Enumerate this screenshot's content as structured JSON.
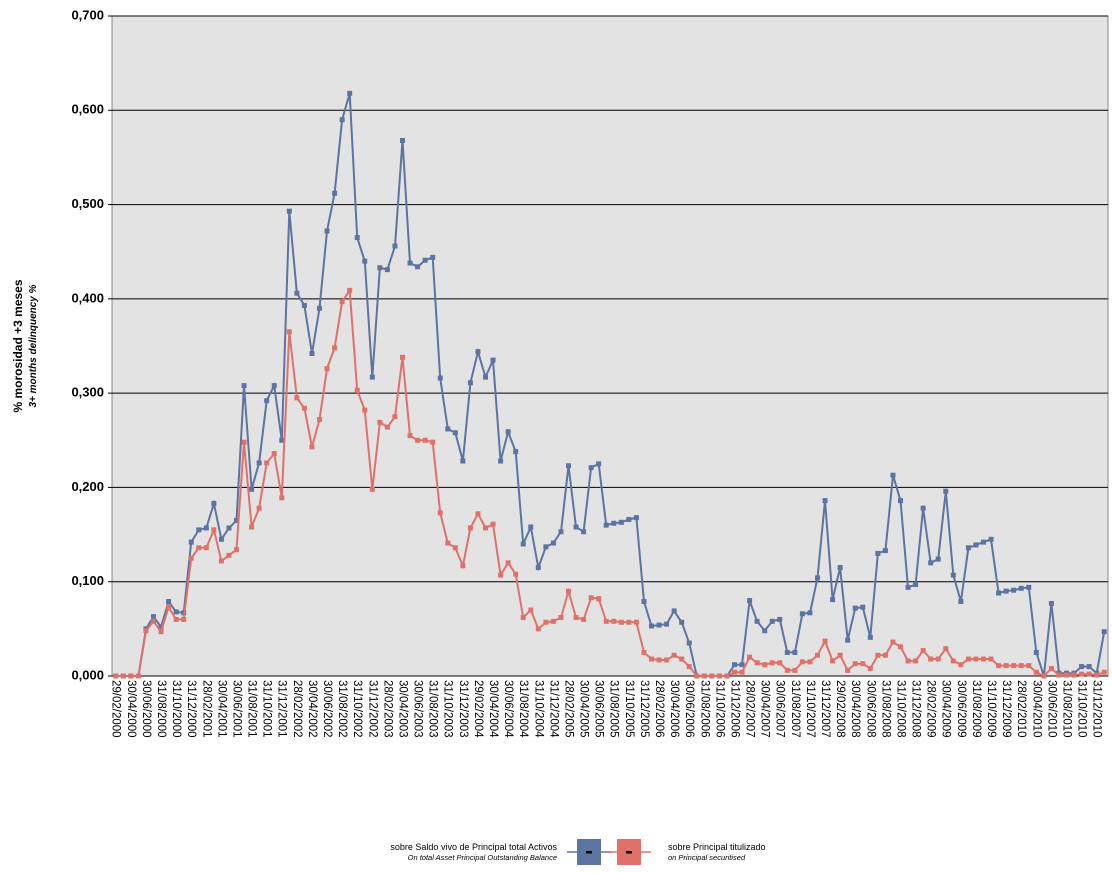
{
  "chart_data": {
    "type": "line",
    "y_label": "% morosidad +3 meses",
    "y_label_en": "3+ months delinquency %",
    "ylim": [
      0,
      0.7
    ],
    "yticks": [
      {
        "value": 0,
        "label": "0,000"
      },
      {
        "value": 0.1,
        "label": "0,100"
      },
      {
        "value": 0.2,
        "label": "0,200"
      },
      {
        "value": 0.3,
        "label": "0,300"
      },
      {
        "value": 0.4,
        "label": "0,400"
      },
      {
        "value": 0.5,
        "label": "0,500"
      },
      {
        "value": 0.6,
        "label": "0,600"
      },
      {
        "value": 0.7,
        "label": "0,700"
      }
    ],
    "grid": true,
    "categories": [
      "29/02/2000",
      null,
      "30/04/2000",
      null,
      "30/06/2000",
      null,
      "31/08/2000",
      null,
      "31/10/2000",
      null,
      "31/12/2000",
      null,
      "28/02/2001",
      null,
      "30/04/2001",
      null,
      "30/06/2001",
      null,
      "31/08/2001",
      null,
      "31/10/2001",
      null,
      "31/12/2001",
      null,
      "28/02/2002",
      null,
      "30/04/2002",
      null,
      "30/06/2002",
      null,
      "31/08/2002",
      null,
      "31/10/2002",
      null,
      "31/12/2002",
      null,
      "28/02/2003",
      null,
      "30/04/2003",
      null,
      "30/06/2003",
      null,
      "31/08/2003",
      null,
      "31/10/2003",
      null,
      "31/12/2003",
      null,
      "29/02/2004",
      null,
      "30/04/2004",
      null,
      "30/06/2004",
      null,
      "31/08/2004",
      null,
      "31/10/2004",
      null,
      "31/12/2004",
      null,
      "28/02/2005",
      null,
      "30/04/2005",
      null,
      "30/06/2005",
      null,
      "31/08/2005",
      null,
      "31/10/2005",
      null,
      "31/12/2005",
      null,
      "28/02/2006",
      null,
      "30/04/2006",
      null,
      "30/06/2006",
      null,
      "31/08/2006",
      null,
      "31/10/2006",
      null,
      "31/12/2006",
      null,
      "28/02/2007",
      null,
      "30/04/2007",
      null,
      "30/06/2007",
      null,
      "31/08/2007",
      null,
      "31/10/2007",
      null,
      "31/12/2007",
      null,
      "29/02/2008",
      null,
      "30/04/2008",
      null,
      "30/06/2008",
      null,
      "31/08/2008",
      null,
      "31/10/2008",
      null,
      "31/12/2008",
      null,
      "28/02/2009",
      null,
      "30/04/2009",
      null,
      "30/06/2009",
      null,
      "31/08/2009",
      null,
      "31/10/2009",
      null,
      "31/12/2009",
      null,
      "28/02/2010",
      null,
      "30/04/2010",
      null,
      "30/06/2010",
      null,
      "31/08/2010",
      null,
      "31/10/2010",
      null,
      "31/12/2010",
      null
    ],
    "series": [
      {
        "name": "sobre Saldo vivo de Principal total Activos",
        "subtitle": "On total Asset Principal Outstanding Balance",
        "color": "#5b74a2",
        "values": [
          0,
          0,
          0,
          0,
          0.05,
          0.063,
          0.052,
          0.079,
          0.068,
          0.067,
          0.142,
          0.155,
          0.157,
          0.183,
          0.145,
          0.157,
          0.165,
          0.308,
          0.198,
          0.226,
          0.292,
          0.308,
          0.25,
          0.493,
          0.406,
          0.393,
          0.342,
          0.39,
          0.472,
          0.512,
          0.59,
          0.618,
          0.465,
          0.44,
          0.317,
          0.433,
          0.431,
          0.456,
          0.568,
          0.438,
          0.434,
          0.441,
          0.444,
          0.316,
          0.262,
          0.258,
          0.228,
          0.311,
          0.344,
          0.317,
          0.335,
          0.228,
          0.259,
          0.238,
          0.14,
          0.158,
          0.115,
          0.137,
          0.141,
          0.153,
          0.223,
          0.158,
          0.153,
          0.221,
          0.225,
          0.16,
          0.162,
          0.163,
          0.166,
          0.168,
          0.079,
          0.053,
          0.054,
          0.055,
          0.069,
          0.057,
          0.035,
          0,
          0,
          0,
          0,
          0,
          0.012,
          0.012,
          0.08,
          0.058,
          0.048,
          0.058,
          0.06,
          0.025,
          0.025,
          0.066,
          0.067,
          0.104,
          0.186,
          0.081,
          0.115,
          0.038,
          0.072,
          0.073,
          0.041,
          0.13,
          0.133,
          0.213,
          0.186,
          0.094,
          0.097,
          0.178,
          0.12,
          0.124,
          0.196,
          0.107,
          0.079,
          0.136,
          0.139,
          0.142,
          0.145,
          0.088,
          0.09,
          0.091,
          0.093,
          0.094,
          0.025,
          0,
          0.077,
          0.003,
          0.003,
          0.003,
          0.01,
          0.01,
          0.003,
          0.047
        ]
      },
      {
        "name": "sobre Principal titulizado",
        "subtitle": "on Principal securitised",
        "color": "#e0716a",
        "values": [
          0,
          0,
          0,
          0,
          0.048,
          0.058,
          0.047,
          0.073,
          0.06,
          0.06,
          0.125,
          0.136,
          0.136,
          0.155,
          0.122,
          0.128,
          0.134,
          0.248,
          0.158,
          0.178,
          0.226,
          0.236,
          0.189,
          0.365,
          0.295,
          0.284,
          0.243,
          0.272,
          0.326,
          0.348,
          0.397,
          0.409,
          0.303,
          0.282,
          0.198,
          0.269,
          0.264,
          0.275,
          0.338,
          0.255,
          0.25,
          0.25,
          0.248,
          0.173,
          0.141,
          0.136,
          0.117,
          0.157,
          0.172,
          0.157,
          0.161,
          0.107,
          0.12,
          0.108,
          0.062,
          0.07,
          0.05,
          0.057,
          0.058,
          0.062,
          0.09,
          0.062,
          0.06,
          0.083,
          0.082,
          0.058,
          0.058,
          0.057,
          0.057,
          0.057,
          0.025,
          0.018,
          0.017,
          0.017,
          0.022,
          0.018,
          0.01,
          0,
          0,
          0,
          0,
          0,
          0.004,
          0.004,
          0.02,
          0.014,
          0.012,
          0.014,
          0.014,
          0.006,
          0.006,
          0.015,
          0.015,
          0.022,
          0.037,
          0.016,
          0.022,
          0.006,
          0.013,
          0.013,
          0.008,
          0.022,
          0.022,
          0.036,
          0.031,
          0.016,
          0.016,
          0.027,
          0.018,
          0.018,
          0.029,
          0.016,
          0.012,
          0.018,
          0.018,
          0.018,
          0.018,
          0.011,
          0.011,
          0.011,
          0.011,
          0.011,
          0.004,
          0,
          0.008,
          0.001,
          0.001,
          0.001,
          0.002,
          0.002,
          0.001,
          0.004
        ]
      }
    ]
  }
}
